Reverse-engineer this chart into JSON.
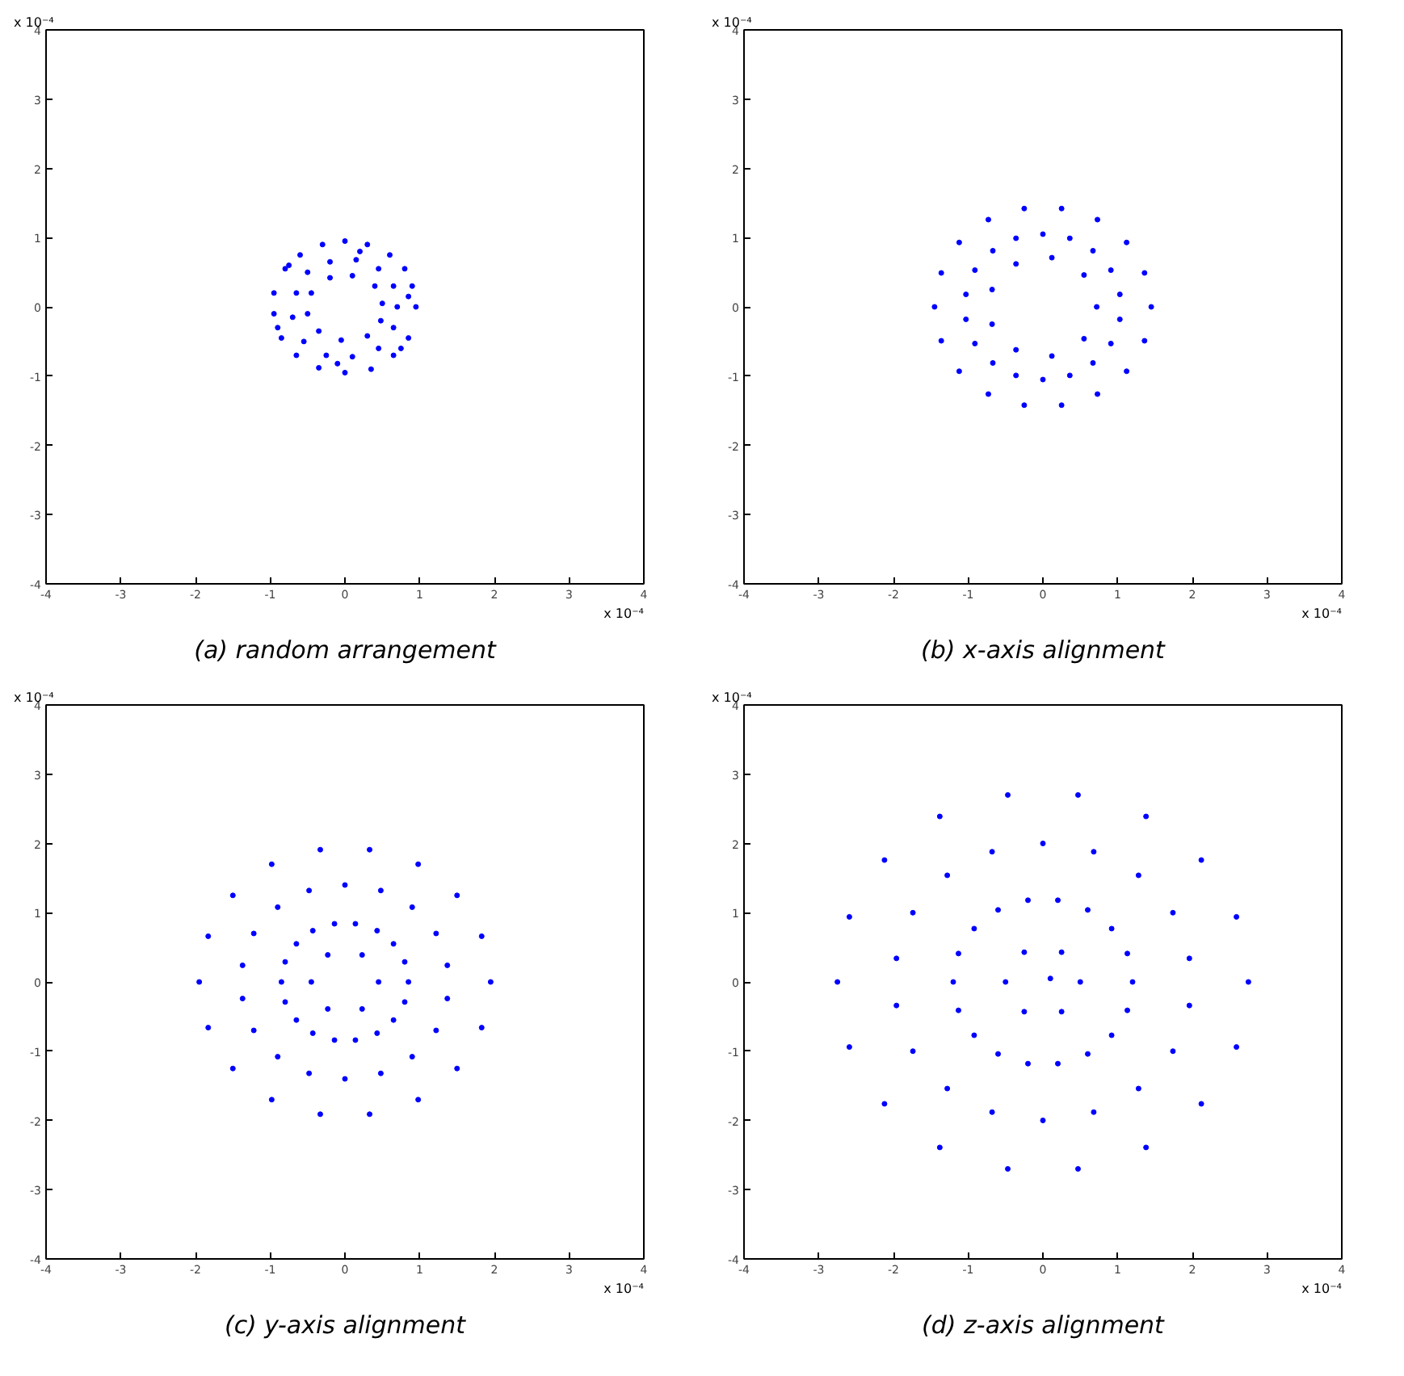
{
  "chart_data": [
    {
      "type": "scatter",
      "title": "(a) random arrangement",
      "annotations": [
        "x 10⁻⁴",
        "x 10⁻⁴"
      ],
      "xlim": [
        -4,
        4
      ],
      "ylim": [
        -4,
        4
      ],
      "xticks": [
        -4,
        -3,
        -2,
        -1,
        0,
        1,
        2,
        3,
        4
      ],
      "yticks": [
        -4,
        -3,
        -2,
        -1,
        0,
        1,
        2,
        3,
        4
      ],
      "marker": "circle",
      "series": [
        {
          "color": "#0000ff",
          "x": [
            0.95,
            0.9,
            0.8,
            0.6,
            0.3,
            0,
            -0.3,
            -0.6,
            -0.8,
            -0.95,
            -0.95,
            -0.85,
            -0.65,
            -0.35,
            0,
            0.35,
            0.65,
            0.85,
            0.7,
            0.65,
            0.45,
            0.15,
            -0.2,
            -0.5,
            -0.65,
            -0.7,
            -0.55,
            -0.25,
            0.1,
            0.45,
            0.65,
            0.5,
            0.4,
            0.1,
            -0.2,
            -0.45,
            -0.5,
            -0.35,
            -0.05,
            0.3,
            0.48,
            0.85,
            -0.75,
            0.2,
            -0.1,
            0.75,
            -0.9
          ],
          "values": [
            0,
            0.3,
            0.55,
            0.75,
            0.9,
            0.95,
            0.9,
            0.75,
            0.55,
            0.2,
            -0.1,
            -0.45,
            -0.7,
            -0.88,
            -0.95,
            -0.9,
            -0.7,
            -0.45,
            0,
            0.3,
            0.55,
            0.68,
            0.65,
            0.5,
            0.2,
            -0.15,
            -0.5,
            -0.7,
            -0.72,
            -0.6,
            -0.3,
            0.05,
            0.3,
            0.45,
            0.42,
            0.2,
            -0.1,
            -0.35,
            -0.48,
            -0.42,
            -0.2,
            0.15,
            0.6,
            0.8,
            -0.82,
            -0.6,
            -0.3
          ]
        }
      ]
    },
    {
      "type": "scatter",
      "title": "(b) x-axis alignment",
      "annotations": [
        "x 10⁻⁴",
        "x 10⁻⁴"
      ],
      "xlim": [
        -4,
        4
      ],
      "ylim": [
        -4,
        4
      ],
      "xticks": [
        -4,
        -3,
        -2,
        -1,
        0,
        1,
        2,
        3,
        4
      ],
      "yticks": [
        -4,
        -3,
        -2,
        -1,
        0,
        1,
        2,
        3,
        4
      ],
      "marker": "circle",
      "series": [
        {
          "color": "#0000ff",
          "x": [
            1.45,
            1.36,
            1.12,
            0.73,
            0.25,
            -0.25,
            -0.73,
            -1.12,
            -1.36,
            -1.45,
            -1.36,
            -1.12,
            -0.73,
            -0.25,
            0.25,
            0.73,
            1.12,
            1.36,
            1.03,
            0.91,
            0.67,
            0.36,
            0,
            -0.36,
            -0.67,
            -0.91,
            -1.03,
            -1.03,
            -0.91,
            -0.67,
            -0.36,
            0,
            0.36,
            0.67,
            0.91,
            1.03,
            0.72,
            0.55,
            0.12,
            -0.36,
            -0.68,
            -0.68,
            -0.36,
            0.12,
            0.55
          ],
          "values": [
            0,
            0.49,
            0.93,
            1.26,
            1.42,
            1.42,
            1.26,
            0.93,
            0.49,
            0,
            -0.49,
            -0.93,
            -1.26,
            -1.42,
            -1.42,
            -1.26,
            -0.93,
            -0.49,
            0.18,
            0.53,
            0.81,
            0.99,
            1.05,
            0.99,
            0.81,
            0.53,
            0.18,
            -0.18,
            -0.53,
            -0.81,
            -0.99,
            -1.05,
            -0.99,
            -0.81,
            -0.53,
            -0.18,
            0,
            0.46,
            0.71,
            0.62,
            0.25,
            -0.25,
            -0.62,
            -0.71,
            -0.46
          ]
        }
      ]
    },
    {
      "type": "scatter",
      "title": "(c) y-axis alignment",
      "annotations": [
        "x 10⁻⁴",
        "x 10⁻⁴"
      ],
      "xlim": [
        -4,
        4
      ],
      "ylim": [
        -4,
        4
      ],
      "xticks": [
        -4,
        -3,
        -2,
        -1,
        0,
        1,
        2,
        3,
        4
      ],
      "yticks": [
        -4,
        -3,
        -2,
        -1,
        0,
        1,
        2,
        3,
        4
      ],
      "marker": "circle",
      "series": [
        {
          "color": "#0000ff",
          "x": [
            1.95,
            1.83,
            1.5,
            0.98,
            0.33,
            -0.33,
            -0.98,
            -1.5,
            -1.83,
            -1.95,
            -1.83,
            -1.5,
            -0.98,
            -0.33,
            0.33,
            0.98,
            1.5,
            1.83,
            1.37,
            1.22,
            0.9,
            0.48,
            0,
            -0.48,
            -0.9,
            -1.22,
            -1.37,
            -1.37,
            -1.22,
            -0.9,
            -0.48,
            0,
            0.48,
            0.9,
            1.22,
            1.37,
            0.85,
            0.8,
            0.65,
            0.43,
            0.14,
            -0.14,
            -0.43,
            -0.65,
            -0.8,
            -0.85,
            -0.8,
            -0.65,
            -0.43,
            -0.14,
            0.14,
            0.43,
            0.65,
            0.8,
            0.45,
            0.23,
            -0.23,
            -0.45,
            -0.23,
            0.23
          ],
          "values": [
            0,
            0.66,
            1.25,
            1.7,
            1.91,
            1.91,
            1.7,
            1.25,
            0.66,
            0,
            -0.66,
            -1.25,
            -1.7,
            -1.91,
            -1.91,
            -1.7,
            -1.25,
            -0.66,
            0.24,
            0.7,
            1.08,
            1.32,
            1.4,
            1.32,
            1.08,
            0.7,
            0.24,
            -0.24,
            -0.7,
            -1.08,
            -1.32,
            -1.4,
            -1.32,
            -1.08,
            -0.7,
            -0.24,
            0,
            0.29,
            0.55,
            0.74,
            0.84,
            0.84,
            0.74,
            0.55,
            0.29,
            0,
            -0.29,
            -0.55,
            -0.74,
            -0.84,
            -0.84,
            -0.74,
            -0.55,
            -0.29,
            0,
            0.39,
            0.39,
            0,
            -0.39,
            -0.39
          ]
        }
      ]
    },
    {
      "type": "scatter",
      "title": "(d) z-axis alignment",
      "annotations": [
        "x 10⁻⁴",
        "x 10⁻⁴"
      ],
      "xlim": [
        -4,
        4
      ],
      "ylim": [
        -4,
        4
      ],
      "xticks": [
        -4,
        -3,
        -2,
        -1,
        0,
        1,
        2,
        3,
        4
      ],
      "yticks": [
        -4,
        -3,
        -2,
        -1,
        0,
        1,
        2,
        3,
        4
      ],
      "marker": "circle",
      "series": [
        {
          "color": "#0000ff",
          "x": [
            2.75,
            2.59,
            2.12,
            1.38,
            0.47,
            -0.47,
            -1.38,
            -2.12,
            -2.59,
            -2.75,
            -2.59,
            -2.12,
            -1.38,
            -0.47,
            0.47,
            1.38,
            2.12,
            2.59,
            1.96,
            1.74,
            1.28,
            0.68,
            0,
            -0.68,
            -1.28,
            -1.74,
            -1.96,
            -1.96,
            -1.74,
            -1.28,
            -0.68,
            0,
            0.68,
            1.28,
            1.74,
            1.96,
            1.2,
            1.13,
            0.92,
            0.6,
            0.2,
            -0.2,
            -0.6,
            -0.92,
            -1.13,
            -1.2,
            -1.13,
            -0.92,
            -0.6,
            -0.2,
            0.2,
            0.6,
            0.92,
            1.13,
            0.5,
            0.25,
            -0.25,
            -0.5,
            -0.25,
            0.25,
            0.1
          ],
          "values": [
            0,
            0.94,
            1.76,
            2.39,
            2.7,
            2.7,
            2.39,
            1.76,
            0.94,
            0,
            -0.94,
            -1.76,
            -2.39,
            -2.7,
            -2.7,
            -2.39,
            -1.76,
            -0.94,
            0.34,
            1.0,
            1.54,
            1.88,
            2.0,
            1.88,
            1.54,
            1.0,
            0.34,
            -0.34,
            -1.0,
            -1.54,
            -1.88,
            -2.0,
            -1.88,
            -1.54,
            -1.0,
            -0.34,
            0,
            0.41,
            0.77,
            1.04,
            1.18,
            1.18,
            1.04,
            0.77,
            0.41,
            0,
            -0.41,
            -0.77,
            -1.04,
            -1.18,
            -1.18,
            -1.04,
            -0.77,
            -0.41,
            0,
            0.43,
            0.43,
            0,
            -0.43,
            -0.43,
            0.05
          ]
        }
      ]
    }
  ]
}
